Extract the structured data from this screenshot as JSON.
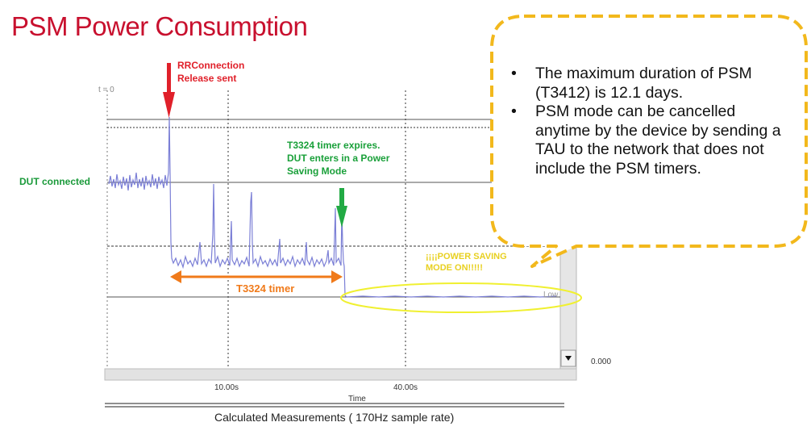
{
  "title": "PSM Power Consumption",
  "markers": {
    "rrc_release_line1": "RRConnection",
    "rrc_release_line2": "Release sent",
    "t_zero": "t = 0",
    "dut_connected": "DUT connected",
    "t3324_expires_line1": "T3324 timer expires.",
    "t3324_expires_line2": "DUT enters in a Power",
    "t3324_expires_line3": "Saving Mode",
    "power_saving_line1": "¡¡¡¡POWER SAVING",
    "power_saving_line2": "MODE ON!!!!!",
    "t3324_timer": "T3324 timer",
    "low": "Low"
  },
  "axes": {
    "y_zero": "0.000",
    "x_tick_1": "10.00s",
    "x_tick_2": "40.00s",
    "x_label": "Time"
  },
  "footer": {
    "calculated": "Calculated Measurements     ( 170Hz sample rate)"
  },
  "callout": {
    "items": [
      "The maximum duration of PSM (T3412) is 12.1 days.",
      "PSM mode can be cancelled anytime by the device by sending a TAU to the network that does not include the PSM timers."
    ]
  },
  "colors": {
    "title": "#c8102e",
    "rrc_arrow": "#e0202a",
    "expiry_arrow": "#22aa44",
    "timer_arrow": "#f07a1a",
    "trace": "#7b7fd6",
    "callout_border": "#f2b81c",
    "ellipse": "#f0f030"
  }
}
